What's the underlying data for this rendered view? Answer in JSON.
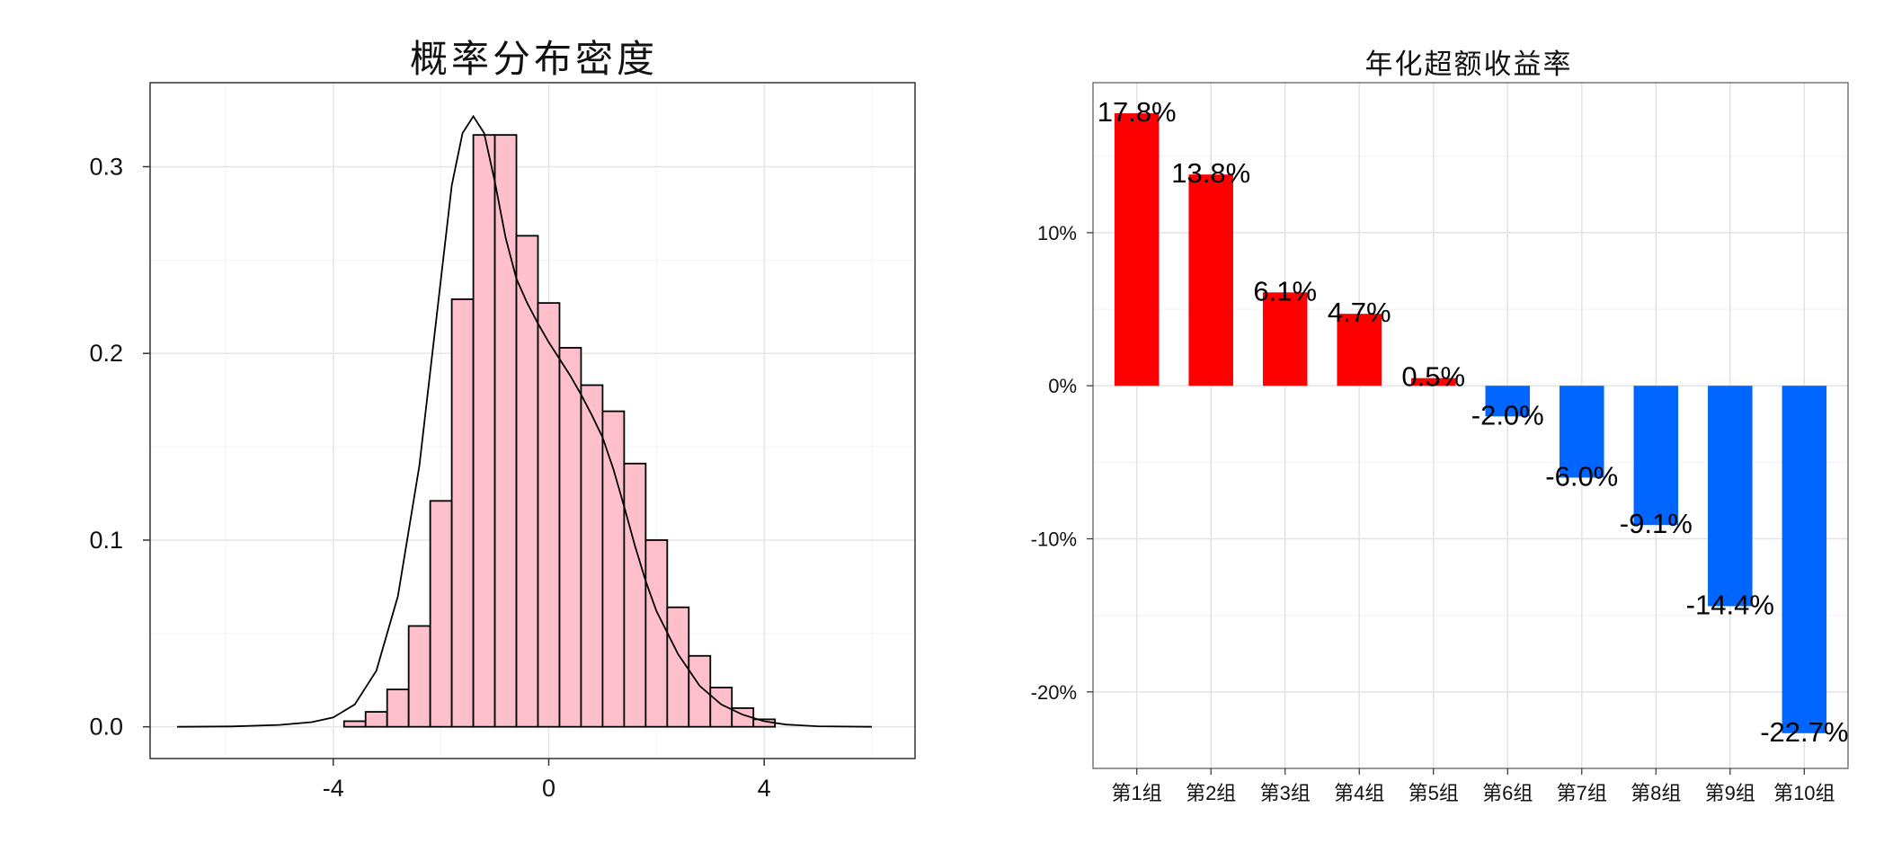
{
  "chart_data": [
    {
      "type": "histogram",
      "title": "概率分布密度",
      "xlabel": "",
      "ylabel": "",
      "xlim": [
        -7.4,
        6.8
      ],
      "ylim": [
        -0.017,
        0.345
      ],
      "x_ticks": [
        -4,
        0,
        4
      ],
      "x_tick_labels": [
        "-4",
        "0",
        "4"
      ],
      "y_ticks": [
        0.0,
        0.1,
        0.2,
        0.3
      ],
      "y_tick_labels": [
        "0.0",
        "0.1",
        "0.2",
        "0.3"
      ],
      "grid": true,
      "bin_width": 0.4,
      "bin_start": -3.8,
      "bar_fill": "#ffc0cb",
      "bar_stroke": "#000000",
      "values": [
        0.003,
        0.008,
        0.02,
        0.054,
        0.121,
        0.229,
        0.317,
        0.317,
        0.263,
        0.227,
        0.203,
        0.183,
        0.169,
        0.141,
        0.1,
        0.064,
        0.038,
        0.021,
        0.01,
        0.004
      ],
      "density_curve": {
        "x": [
          -6.9,
          -5.9,
          -5.0,
          -4.4,
          -4.0,
          -3.6,
          -3.2,
          -2.8,
          -2.4,
          -2.0,
          -1.8,
          -1.6,
          -1.4,
          -1.2,
          -1.0,
          -0.8,
          -0.6,
          -0.4,
          -0.2,
          0.0,
          0.2,
          0.4,
          0.6,
          0.8,
          1.0,
          1.2,
          1.4,
          1.6,
          1.8,
          2.0,
          2.4,
          2.8,
          3.2,
          3.6,
          4.0,
          4.4,
          5.0,
          6.0
        ],
        "y": [
          0.0,
          0.0002,
          0.001,
          0.0025,
          0.005,
          0.012,
          0.03,
          0.07,
          0.14,
          0.24,
          0.29,
          0.318,
          0.327,
          0.318,
          0.292,
          0.262,
          0.24,
          0.227,
          0.216,
          0.206,
          0.197,
          0.188,
          0.178,
          0.167,
          0.155,
          0.138,
          0.118,
          0.097,
          0.078,
          0.062,
          0.039,
          0.022,
          0.012,
          0.0065,
          0.003,
          0.0012,
          0.0003,
          0.0
        ]
      }
    },
    {
      "type": "bar",
      "title": "年化超额收益率",
      "xlabel": "",
      "ylabel": "",
      "ylim": [
        -0.25,
        0.198
      ],
      "y_ticks": [
        -0.2,
        -0.1,
        0.0,
        0.1
      ],
      "y_tick_labels": [
        "-20%",
        "-10%",
        "0%",
        "10%"
      ],
      "grid": true,
      "positive_color": "#ff0000",
      "negative_color": "#0066ff",
      "categories": [
        "第1组",
        "第2组",
        "第3组",
        "第4组",
        "第5组",
        "第6组",
        "第7组",
        "第8组",
        "第9组",
        "第10组"
      ],
      "values": [
        0.178,
        0.138,
        0.061,
        0.047,
        0.005,
        -0.02,
        -0.06,
        -0.091,
        -0.144,
        -0.227
      ],
      "data_labels": [
        "17.8%",
        "13.8%",
        "6.1%",
        "4.7%",
        "0.5%",
        "-2.0%",
        "-6.0%",
        "-9.1%",
        "-14.4%",
        "-22.7%"
      ]
    }
  ]
}
